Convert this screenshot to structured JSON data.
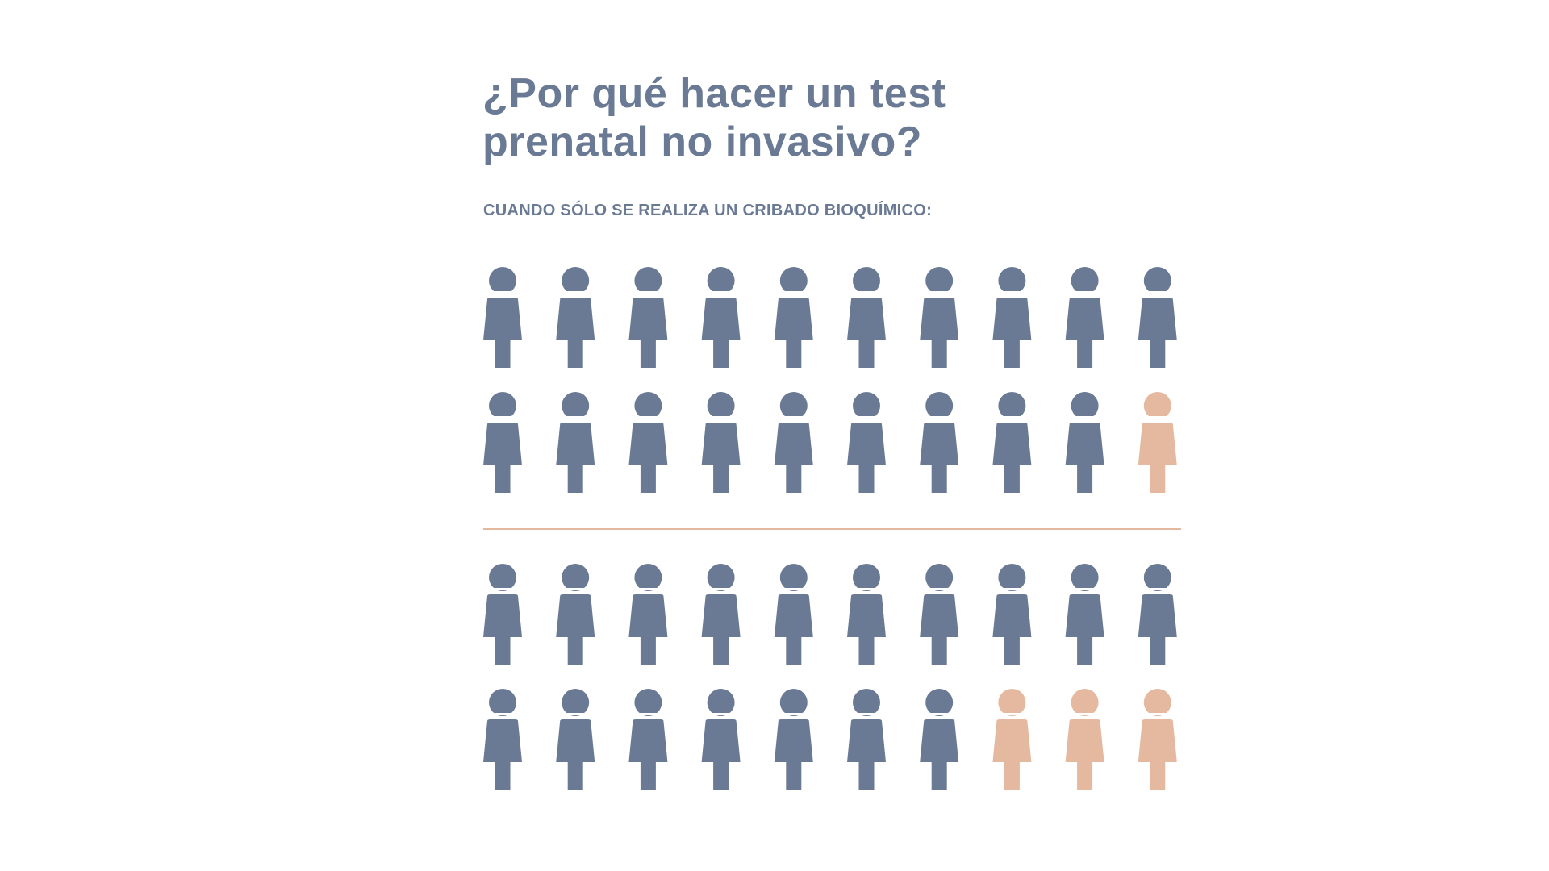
{
  "header": {
    "title": "¿Por qué hacer un test prenatal no invasivo?",
    "subtitle": "CUANDO SÓLO SE REALIZA UN CRIBADO BIOQUÍMICO:"
  },
  "groups": [
    {
      "count": 20,
      "highlighted": 1
    },
    {
      "count": 20,
      "highlighted": 3
    }
  ],
  "colors": {
    "base": "#6a7a94",
    "highlight": "#e5b9a0"
  }
}
